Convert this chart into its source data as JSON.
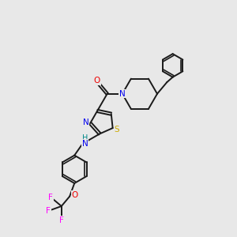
{
  "bg_color": "#e8e8e8",
  "bond_color": "#1a1a1a",
  "atom_colors": {
    "N": "#0000ee",
    "O": "#ee0000",
    "S": "#ccaa00",
    "F": "#ff00ff",
    "H": "#008888",
    "C": "#1a1a1a"
  }
}
